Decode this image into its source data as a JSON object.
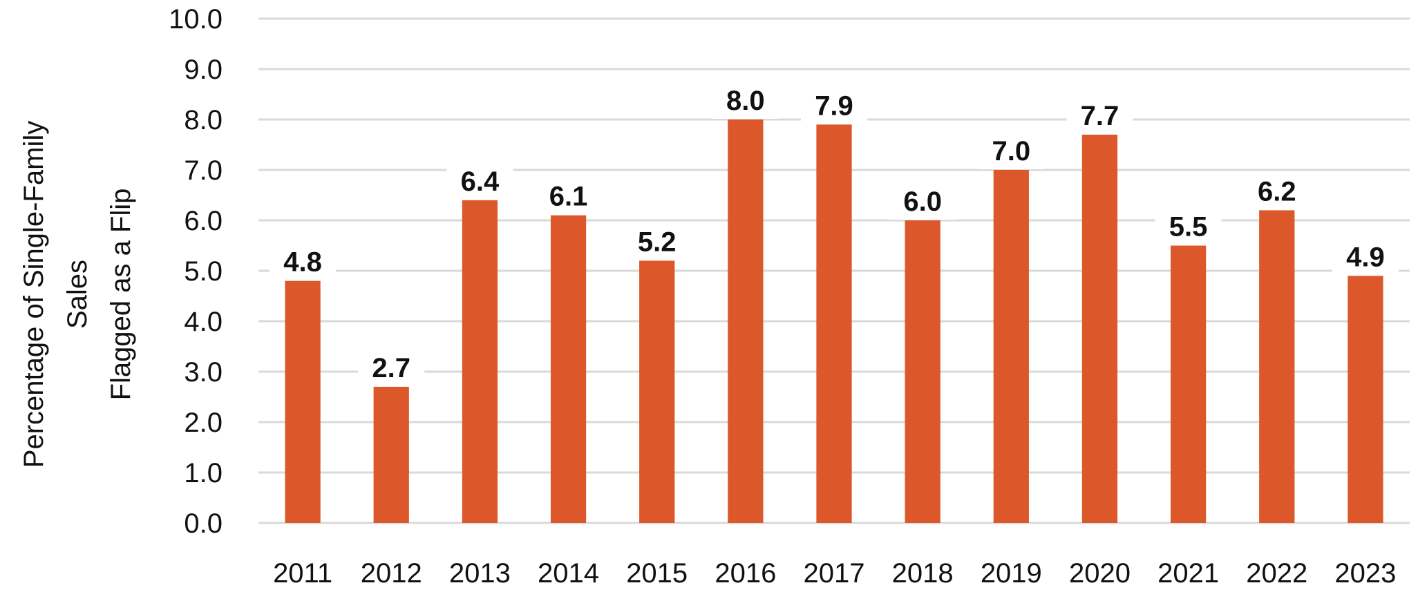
{
  "chart_data": {
    "type": "bar",
    "categories": [
      "2011",
      "2012",
      "2013",
      "2014",
      "2015",
      "2016",
      "2017",
      "2018",
      "2019",
      "2020",
      "2021",
      "2022",
      "2023"
    ],
    "values": [
      4.8,
      2.7,
      6.4,
      6.1,
      5.2,
      8.0,
      7.9,
      6.0,
      7.0,
      7.7,
      5.5,
      6.2,
      4.9
    ],
    "value_labels": [
      "4.8",
      "2.7",
      "6.4",
      "6.1",
      "5.2",
      "8.0",
      "7.9",
      "6.0",
      "7.0",
      "7.7",
      "5.5",
      "6.2",
      "4.9"
    ],
    "title": "",
    "xlabel": "",
    "ylabel_lines": [
      "Percentage of Single-Family",
      "Sales",
      "Flagged as a Flip"
    ],
    "ylim": [
      0,
      10
    ],
    "yticks": [
      "0.0",
      "1.0",
      "2.0",
      "3.0",
      "4.0",
      "5.0",
      "6.0",
      "7.0",
      "8.0",
      "9.0",
      "10.0"
    ],
    "grid": true,
    "legend": "none",
    "bar_color": "#DC582A"
  }
}
